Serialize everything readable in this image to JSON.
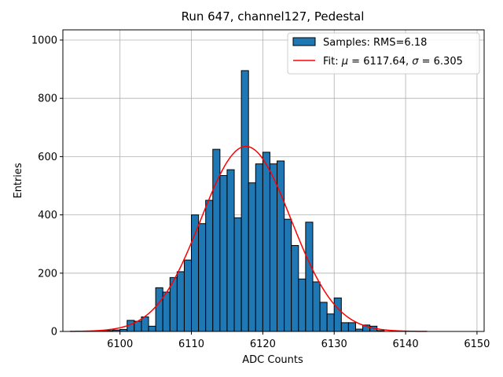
{
  "chart_data": {
    "type": "bar",
    "title": "Run 647, channel127, Pedestal",
    "xlabel": "ADC Counts",
    "ylabel": "Entries",
    "xlim": [
      6092,
      6151
    ],
    "ylim": [
      0,
      1035
    ],
    "x_ticks": [
      6100,
      6110,
      6120,
      6130,
      6140,
      6150
    ],
    "y_ticks": [
      0,
      200,
      400,
      600,
      800,
      1000
    ],
    "grid": true,
    "legend_position": "top-right",
    "histogram": {
      "name": "Samples: RMS=6.18",
      "color": "#1f77b4",
      "edge_color": "#000000",
      "bin_starts": [
        6097,
        6098,
        6099,
        6100,
        6101,
        6102,
        6103,
        6104,
        6105,
        6106,
        6107,
        6108,
        6109,
        6110,
        6111,
        6112,
        6113,
        6114,
        6115,
        6116,
        6117,
        6118,
        6119,
        6120,
        6121,
        6122,
        6123,
        6124,
        6125,
        6126,
        6127,
        6128,
        6129,
        6130,
        6131,
        6132,
        6133,
        6134,
        6135,
        6136
      ],
      "bin_width": 1,
      "values": [
        2,
        3,
        5,
        7,
        38,
        35,
        50,
        18,
        150,
        135,
        185,
        205,
        245,
        400,
        370,
        450,
        625,
        535,
        555,
        390,
        895,
        510,
        575,
        615,
        575,
        585,
        385,
        295,
        180,
        375,
        170,
        100,
        60,
        115,
        30,
        30,
        8,
        22,
        18,
        3
      ]
    },
    "fit": {
      "name": "Fit: μ = 6117.64, σ = 6.305",
      "mu_symbol": "μ",
      "sigma_symbol": "σ",
      "prefix": "Fit: ",
      "mu_text": " = 6117.64, ",
      "sigma_text": " = 6.305",
      "color": "#ff0000",
      "mu": 6117.64,
      "sigma": 6.305,
      "amplitude": 635,
      "x_range": [
        6093,
        6143
      ]
    }
  }
}
